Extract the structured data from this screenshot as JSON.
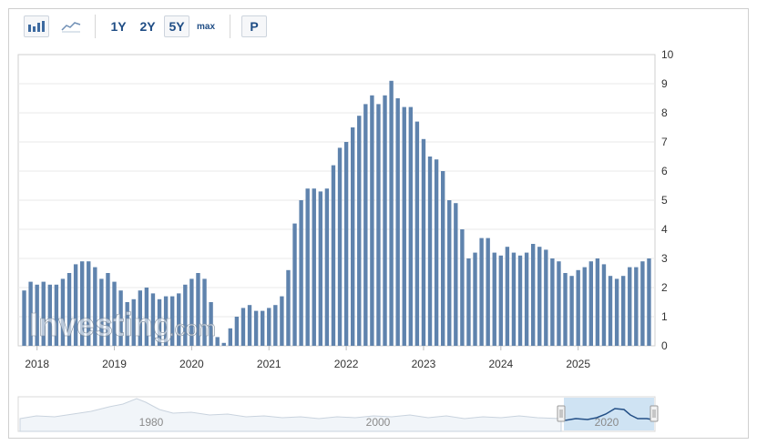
{
  "toolbar": {
    "bar_chart_icon": "bar-chart-icon",
    "line_chart_icon": "line-chart-icon",
    "range_1y": "1Y",
    "range_2y": "2Y",
    "range_5y": "5Y",
    "range_max": "max",
    "pin_button": "P",
    "selected_range": "5Y"
  },
  "watermark": {
    "brand": "Investing",
    "suffix": ".com"
  },
  "navigator": {
    "labels": [
      "1980",
      "2000",
      "2020"
    ]
  },
  "colors": {
    "bar": "#5f83ad",
    "grid": "#e8e8e8",
    "accent": "#1f4d85",
    "navigator_fill": "#cfe3f3",
    "navigator_line": "#234f86"
  },
  "chart_data": {
    "type": "bar",
    "ylim": [
      0,
      10
    ],
    "yticks": [
      "0",
      "1",
      "2",
      "3",
      "4",
      "5",
      "6",
      "7",
      "8",
      "9",
      "10"
    ],
    "xticks": [
      "2018",
      "2019",
      "2020",
      "2021",
      "2022",
      "2023",
      "2024",
      "2025"
    ],
    "start": "2017-11",
    "end": "2025-09",
    "series": [
      {
        "values": [
          1.9,
          2.2,
          2.1,
          2.2,
          2.1,
          2.1,
          2.3,
          2.5,
          2.8,
          2.9,
          2.9,
          2.7,
          2.3,
          2.5,
          2.2,
          1.9,
          1.5,
          1.6,
          1.9,
          2.0,
          1.8,
          1.6,
          1.7,
          1.7,
          1.8,
          2.1,
          2.3,
          2.5,
          2.3,
          1.5,
          0.3,
          0.1,
          0.6,
          1.0,
          1.3,
          1.4,
          1.2,
          1.2,
          1.3,
          1.4,
          1.7,
          2.6,
          4.2,
          5.0,
          5.4,
          5.4,
          5.3,
          5.4,
          6.2,
          6.8,
          7.0,
          7.5,
          7.9,
          8.3,
          8.6,
          8.3,
          8.6,
          9.1,
          8.5,
          8.2,
          8.2,
          7.7,
          7.1,
          6.5,
          6.4,
          6.0,
          5.0,
          4.9,
          4.0,
          3.0,
          3.2,
          3.7,
          3.7,
          3.2,
          3.1,
          3.4,
          3.2,
          3.1,
          3.2,
          3.5,
          3.4,
          3.3,
          3.0,
          2.9,
          2.5,
          2.4,
          2.6,
          2.7,
          2.9,
          3.0,
          2.8,
          2.4,
          2.3,
          2.4,
          2.7,
          2.7,
          2.9,
          3.0
        ]
      }
    ]
  }
}
